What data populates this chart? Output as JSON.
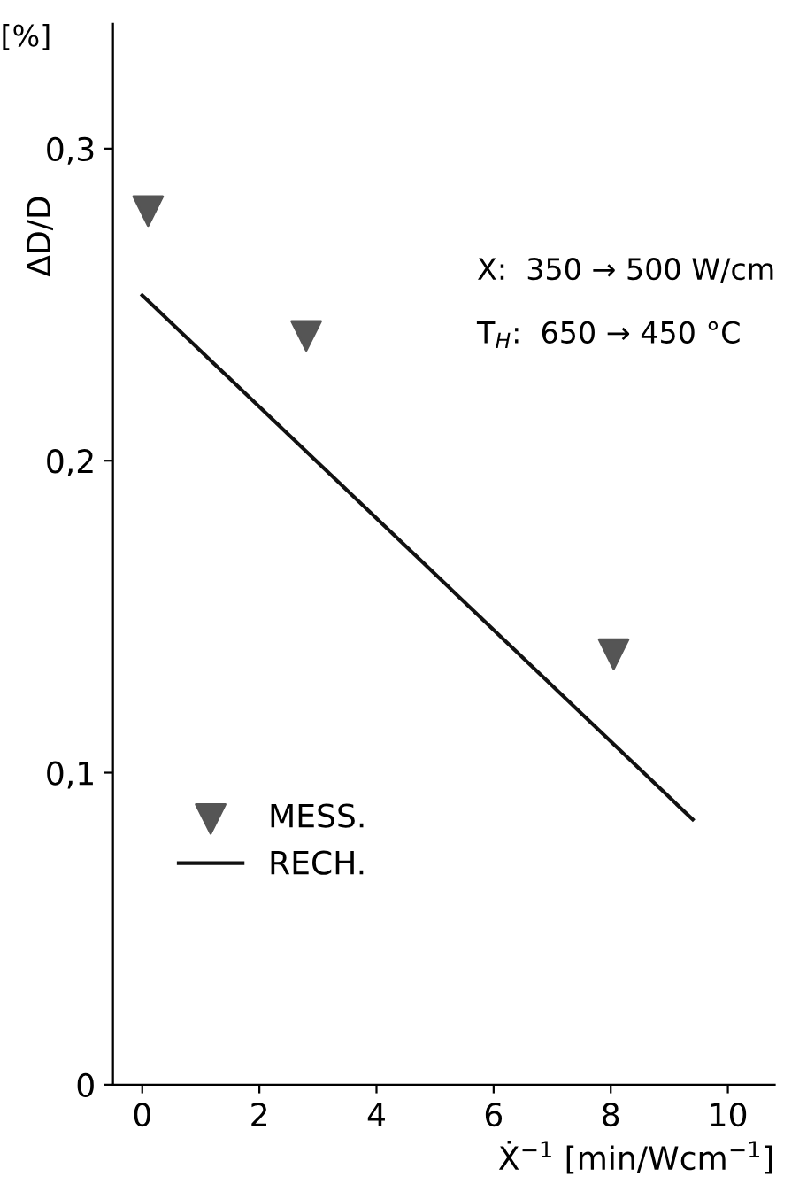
{
  "chart_data": {
    "type": "scatter",
    "xlabel": "Ẋ$^{−1}$ [min/Wcm$^{−1}$]",
    "ylabel": "ΔD/D",
    "annotations": [
      "[%]",
      "X:  350 → 500 W/cm",
      "T$_{H}$:  650 → 450 °C"
    ],
    "series": [
      {
        "name": "MESS.",
        "color": "#555555",
        "marker": "triangle",
        "x": [
          0.1,
          2.8,
          8.05
        ],
        "values": [
          0.28,
          0.24,
          0.138
        ]
      },
      {
        "name": "RECH.",
        "type": "line",
        "color": "#111111",
        "line_style": "solid",
        "x": [
          0,
          9.4
        ],
        "values": [
          0.253,
          0.085
        ]
      }
    ],
    "xlim": [
      -0.5,
      10.8
    ],
    "ylim": [
      0,
      0.34
    ],
    "xticks": [
      0,
      2,
      4,
      6,
      8,
      10
    ],
    "yticks": [
      0,
      {
        "value": 0.1,
        "label": "0,1"
      },
      {
        "value": 0.2,
        "label": "0,2"
      },
      {
        "value": 0.3,
        "label": "0,3"
      }
    ],
    "grid": false,
    "legend": "bottom left"
  }
}
